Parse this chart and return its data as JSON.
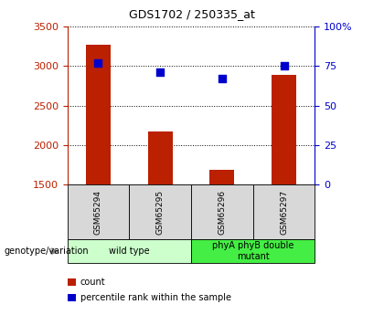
{
  "title": "GDS1702 / 250335_at",
  "samples": [
    "GSM65294",
    "GSM65295",
    "GSM65296",
    "GSM65297"
  ],
  "counts": [
    3270,
    2170,
    1680,
    2890
  ],
  "percentiles": [
    77,
    71,
    67,
    75
  ],
  "ymin": 1500,
  "ymax": 3500,
  "y2min": 0,
  "y2max": 100,
  "yticks": [
    1500,
    2000,
    2500,
    3000,
    3500
  ],
  "y2ticks": [
    0,
    25,
    50,
    75,
    100
  ],
  "y2ticklabels": [
    "0",
    "25",
    "50",
    "75",
    "100%"
  ],
  "bar_color": "#bb2000",
  "dot_color": "#0000cc",
  "groups": [
    {
      "label": "wild type",
      "indices": [
        0,
        1
      ],
      "color": "#ccffcc"
    },
    {
      "label": "phyA phyB double\nmutant",
      "indices": [
        2,
        3
      ],
      "color": "#44ee44"
    }
  ],
  "xlabel_genotype": "genotype/variation",
  "legend_count": "count",
  "legend_percentile": "percentile rank within the sample",
  "bar_width": 0.4
}
